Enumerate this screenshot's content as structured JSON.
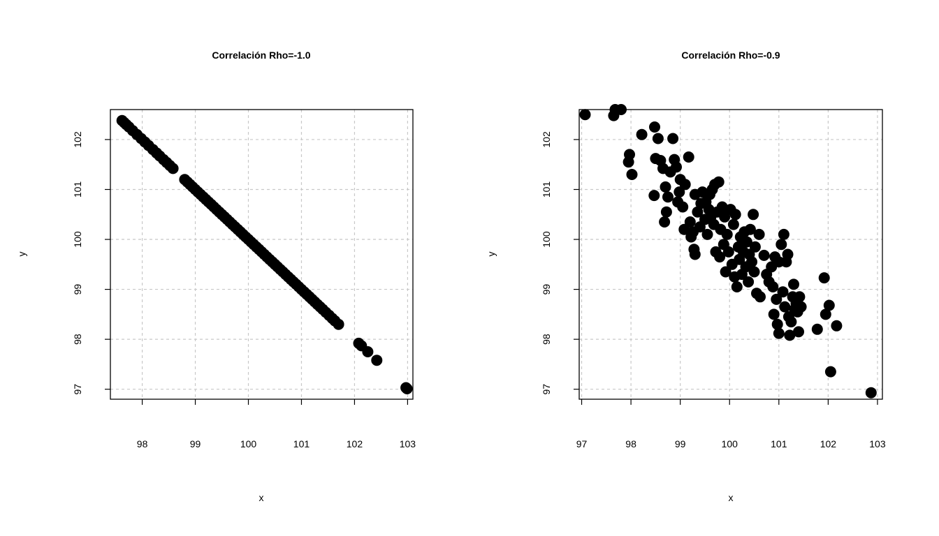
{
  "chart_data": [
    {
      "type": "scatter",
      "title": "Correlación Rho=-1.0",
      "xlabel": "x",
      "ylabel": "y",
      "xlim": [
        97.4,
        103.1
      ],
      "ylim": [
        96.8,
        102.6
      ],
      "xticks": [
        "98",
        "99",
        "100",
        "101",
        "102",
        "103"
      ],
      "yticks": [
        "97",
        "98",
        "99",
        "100",
        "101",
        "102"
      ],
      "grid": true,
      "marker_color": "#000000",
      "grid_color": "#c8c8c8",
      "points": [
        [
          97.62,
          102.38
        ],
        [
          97.66,
          102.34
        ],
        [
          97.7,
          102.3
        ],
        [
          97.75,
          102.25
        ],
        [
          97.82,
          102.18
        ],
        [
          97.9,
          102.1
        ],
        [
          97.98,
          102.02
        ],
        [
          98.05,
          101.95
        ],
        [
          98.12,
          101.88
        ],
        [
          98.2,
          101.8
        ],
        [
          98.27,
          101.73
        ],
        [
          98.33,
          101.67
        ],
        [
          98.4,
          101.6
        ],
        [
          98.46,
          101.54
        ],
        [
          98.52,
          101.48
        ],
        [
          98.58,
          101.42
        ],
        [
          98.8,
          101.2
        ],
        [
          98.85,
          101.15
        ],
        [
          98.9,
          101.1
        ],
        [
          98.95,
          101.05
        ],
        [
          99.0,
          101.0
        ],
        [
          99.05,
          100.95
        ],
        [
          99.1,
          100.9
        ],
        [
          99.15,
          100.85
        ],
        [
          99.2,
          100.8
        ],
        [
          99.25,
          100.75
        ],
        [
          99.3,
          100.7
        ],
        [
          99.35,
          100.65
        ],
        [
          99.4,
          100.6
        ],
        [
          99.45,
          100.55
        ],
        [
          99.5,
          100.5
        ],
        [
          99.55,
          100.45
        ],
        [
          99.6,
          100.4
        ],
        [
          99.65,
          100.35
        ],
        [
          99.7,
          100.3
        ],
        [
          99.75,
          100.25
        ],
        [
          99.8,
          100.2
        ],
        [
          99.85,
          100.15
        ],
        [
          99.9,
          100.1
        ],
        [
          99.95,
          100.05
        ],
        [
          100.0,
          100.0
        ],
        [
          100.05,
          99.95
        ],
        [
          100.1,
          99.9
        ],
        [
          100.15,
          99.85
        ],
        [
          100.2,
          99.8
        ],
        [
          100.25,
          99.75
        ],
        [
          100.3,
          99.7
        ],
        [
          100.35,
          99.65
        ],
        [
          100.4,
          99.6
        ],
        [
          100.45,
          99.55
        ],
        [
          100.5,
          99.5
        ],
        [
          100.55,
          99.45
        ],
        [
          100.6,
          99.4
        ],
        [
          100.65,
          99.35
        ],
        [
          100.7,
          99.3
        ],
        [
          100.75,
          99.25
        ],
        [
          100.8,
          99.2
        ],
        [
          100.85,
          99.15
        ],
        [
          100.9,
          99.1
        ],
        [
          100.95,
          99.05
        ],
        [
          101.0,
          99.0
        ],
        [
          101.05,
          98.95
        ],
        [
          101.1,
          98.9
        ],
        [
          101.15,
          98.85
        ],
        [
          101.2,
          98.8
        ],
        [
          101.25,
          98.75
        ],
        [
          101.3,
          98.7
        ],
        [
          101.35,
          98.65
        ],
        [
          101.4,
          98.6
        ],
        [
          101.46,
          98.54
        ],
        [
          101.52,
          98.48
        ],
        [
          101.58,
          98.42
        ],
        [
          101.63,
          98.37
        ],
        [
          101.7,
          98.3
        ],
        [
          102.08,
          97.92
        ],
        [
          102.13,
          97.87
        ],
        [
          102.25,
          97.75
        ],
        [
          102.42,
          97.58
        ],
        [
          102.97,
          97.03
        ],
        [
          102.99,
          97.01
        ]
      ]
    },
    {
      "type": "scatter",
      "title": "Correlación Rho=-0.9",
      "xlabel": "x",
      "ylabel": "y",
      "xlim": [
        96.95,
        103.1
      ],
      "ylim": [
        96.8,
        102.6
      ],
      "xticks": [
        "97",
        "98",
        "99",
        "100",
        "101",
        "102",
        "103"
      ],
      "yticks": [
        "97",
        "98",
        "99",
        "100",
        "101",
        "102"
      ],
      "grid": true,
      "marker_color": "#000000",
      "grid_color": "#c8c8c8",
      "points": [
        [
          97.07,
          102.5
        ],
        [
          97.65,
          102.48
        ],
        [
          97.68,
          102.6
        ],
        [
          97.8,
          102.6
        ],
        [
          98.22,
          102.1
        ],
        [
          97.95,
          101.55
        ],
        [
          97.97,
          101.7
        ],
        [
          98.02,
          101.3
        ],
        [
          98.48,
          102.25
        ],
        [
          98.55,
          102.02
        ],
        [
          98.85,
          102.02
        ],
        [
          98.47,
          100.88
        ],
        [
          98.5,
          101.62
        ],
        [
          98.6,
          101.58
        ],
        [
          98.65,
          101.42
        ],
        [
          98.7,
          101.05
        ],
        [
          98.72,
          100.55
        ],
        [
          98.75,
          100.85
        ],
        [
          98.8,
          101.35
        ],
        [
          98.68,
          100.35
        ],
        [
          98.88,
          101.6
        ],
        [
          98.92,
          101.45
        ],
        [
          98.95,
          100.75
        ],
        [
          98.98,
          100.95
        ],
        [
          99.0,
          101.2
        ],
        [
          99.05,
          100.65
        ],
        [
          99.08,
          100.2
        ],
        [
          99.1,
          101.1
        ],
        [
          99.17,
          101.65
        ],
        [
          99.2,
          100.35
        ],
        [
          99.22,
          100.05
        ],
        [
          99.26,
          100.15
        ],
        [
          99.28,
          99.8
        ],
        [
          99.3,
          99.7
        ],
        [
          99.3,
          100.9
        ],
        [
          99.35,
          100.55
        ],
        [
          99.4,
          100.25
        ],
        [
          99.42,
          100.72
        ],
        [
          99.45,
          100.95
        ],
        [
          99.5,
          100.4
        ],
        [
          99.52,
          100.75
        ],
        [
          99.55,
          100.1
        ],
        [
          99.58,
          100.6
        ],
        [
          99.6,
          100.9
        ],
        [
          99.62,
          100.45
        ],
        [
          99.65,
          101.0
        ],
        [
          99.68,
          100.3
        ],
        [
          99.7,
          101.1
        ],
        [
          99.72,
          99.75
        ],
        [
          99.75,
          100.55
        ],
        [
          99.78,
          101.15
        ],
        [
          99.8,
          99.65
        ],
        [
          99.82,
          100.2
        ],
        [
          99.85,
          100.65
        ],
        [
          99.88,
          99.9
        ],
        [
          99.9,
          100.45
        ],
        [
          99.92,
          99.35
        ],
        [
          99.95,
          100.1
        ],
        [
          99.98,
          99.75
        ],
        [
          100.02,
          100.6
        ],
        [
          100.05,
          99.5
        ],
        [
          100.08,
          100.3
        ],
        [
          100.1,
          99.25
        ],
        [
          100.12,
          100.5
        ],
        [
          100.15,
          99.05
        ],
        [
          100.18,
          99.85
        ],
        [
          100.2,
          99.6
        ],
        [
          100.22,
          100.05
        ],
        [
          100.25,
          99.3
        ],
        [
          100.28,
          99.75
        ],
        [
          100.3,
          100.15
        ],
        [
          100.33,
          99.45
        ],
        [
          100.35,
          99.95
        ],
        [
          100.38,
          99.15
        ],
        [
          100.4,
          99.7
        ],
        [
          100.42,
          100.2
        ],
        [
          100.45,
          99.55
        ],
        [
          100.48,
          100.5
        ],
        [
          100.5,
          99.35
        ],
        [
          100.52,
          99.85
        ],
        [
          100.55,
          98.92
        ],
        [
          100.6,
          100.1
        ],
        [
          100.62,
          98.85
        ],
        [
          100.7,
          99.68
        ],
        [
          100.75,
          99.3
        ],
        [
          100.8,
          99.15
        ],
        [
          100.85,
          99.45
        ],
        [
          100.88,
          99.05
        ],
        [
          100.9,
          98.5
        ],
        [
          100.92,
          99.65
        ],
        [
          100.95,
          98.8
        ],
        [
          100.97,
          98.3
        ],
        [
          101.0,
          99.55
        ],
        [
          101.0,
          98.12
        ],
        [
          101.05,
          99.9
        ],
        [
          101.08,
          98.95
        ],
        [
          101.1,
          100.1
        ],
        [
          101.12,
          98.65
        ],
        [
          101.15,
          99.55
        ],
        [
          101.18,
          99.7
        ],
        [
          101.2,
          98.45
        ],
        [
          101.22,
          98.08
        ],
        [
          101.25,
          98.35
        ],
        [
          101.28,
          98.85
        ],
        [
          101.3,
          99.1
        ],
        [
          101.32,
          98.6
        ],
        [
          101.35,
          98.72
        ],
        [
          101.38,
          98.55
        ],
        [
          101.4,
          98.15
        ],
        [
          101.42,
          98.85
        ],
        [
          101.45,
          98.65
        ],
        [
          101.78,
          98.2
        ],
        [
          101.92,
          99.23
        ],
        [
          101.95,
          98.5
        ],
        [
          102.02,
          98.68
        ],
        [
          102.05,
          97.35
        ],
        [
          102.17,
          98.27
        ],
        [
          102.87,
          96.93
        ]
      ]
    }
  ]
}
